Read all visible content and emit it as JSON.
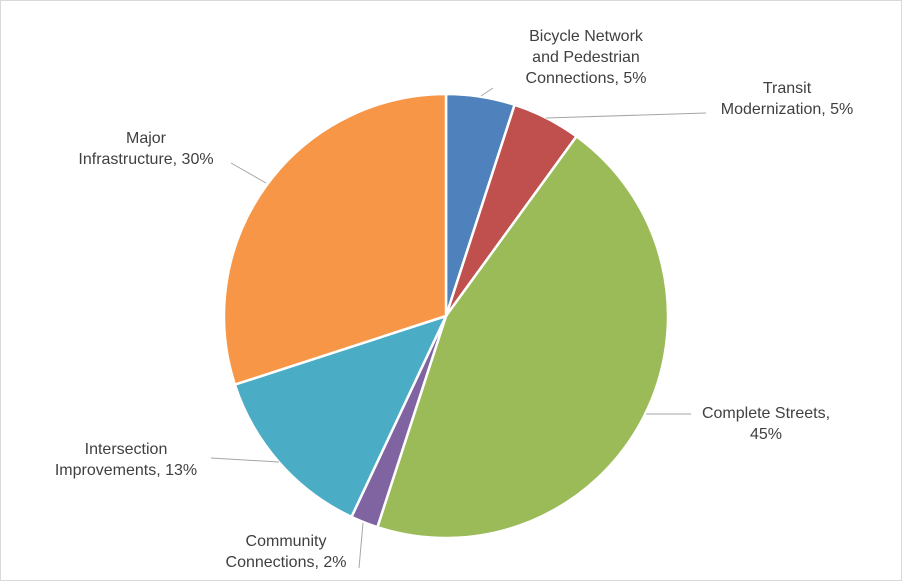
{
  "chart_data": {
    "type": "pie",
    "start": "12 o'clock, clockwise",
    "legend": "none (data labels with leader lines)",
    "slices": [
      {
        "label": "Bicycle Network and Pedestrian Connections",
        "value": 5,
        "data_label": [
          "Bicycle Network",
          "and Pedestrian",
          "Connections, 5%"
        ],
        "color": "#4F81BD"
      },
      {
        "label": "Transit Modernization",
        "value": 5,
        "data_label": [
          "Transit",
          "Modernization, 5%"
        ],
        "color": "#C0504D"
      },
      {
        "label": "Complete Streets",
        "value": 45,
        "data_label": [
          "Complete Streets,",
          "45%"
        ],
        "color": "#9BBB59"
      },
      {
        "label": "Community Connections",
        "value": 2,
        "data_label": [
          "Community",
          "Connections, 2%"
        ],
        "color": "#8064A2"
      },
      {
        "label": "Intersection Improvements",
        "value": 13,
        "data_label": [
          "Intersection",
          "Improvements, 13%"
        ],
        "color": "#4BACC6"
      },
      {
        "label": "Major Infrastructure",
        "value": 30,
        "data_label": [
          "Major",
          "Infrastructure, 30%"
        ],
        "color": "#F79646"
      }
    ]
  }
}
